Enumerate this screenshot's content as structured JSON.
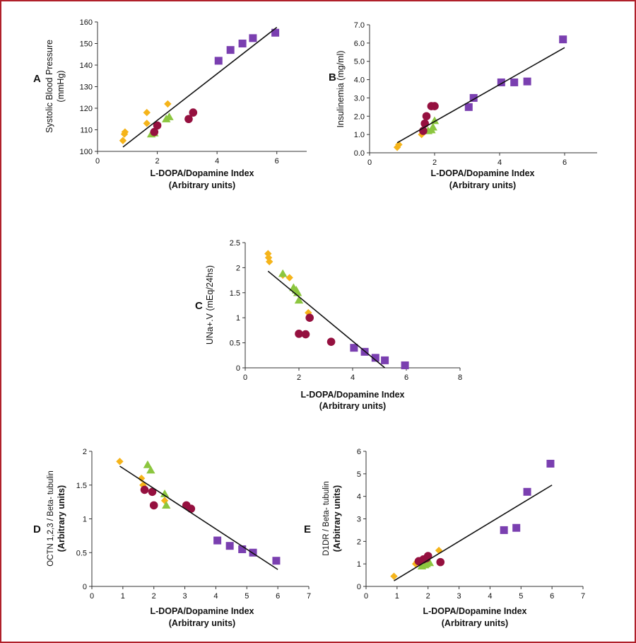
{
  "colors": {
    "frame": "#b0202a",
    "diamond": "#f5b41a",
    "triangle": "#8cc63f",
    "circle": "#95103f",
    "square": "#7a3fb0",
    "axis": "#333333",
    "fit": "#111111"
  },
  "chart_data": [
    {
      "id": "A",
      "type": "scatter",
      "panel_label": "A",
      "xlabel": [
        "L-DOPA/Dopamine Index",
        "(Arbitrary units)"
      ],
      "ylabel": [
        "Systolic Blood Pressure",
        "(mmHg)"
      ],
      "xlim": [
        0,
        7
      ],
      "ylim": [
        100,
        160
      ],
      "xticks": [
        "0",
        "2",
        "4",
        "6"
      ],
      "xtick_values": [
        0,
        2,
        4,
        6
      ],
      "yticks": [
        "100",
        "110",
        "120",
        "130",
        "140",
        "150",
        "160"
      ],
      "ytick_values": [
        100,
        110,
        120,
        130,
        140,
        150,
        160
      ],
      "fit_line": [
        [
          0.85,
          102
        ],
        [
          6.0,
          157.5
        ]
      ],
      "series": [
        {
          "name": "diamond",
          "marker": "diamond",
          "points": [
            [
              0.85,
              105
            ],
            [
              0.9,
              108
            ],
            [
              0.92,
              109
            ],
            [
              1.65,
              113
            ],
            [
              1.65,
              118
            ],
            [
              2.35,
              122
            ]
          ]
        },
        {
          "name": "triangle",
          "marker": "triangle",
          "points": [
            [
              1.8,
              108
            ],
            [
              1.9,
              108.5
            ],
            [
              2.3,
              115
            ],
            [
              2.4,
              116
            ]
          ]
        },
        {
          "name": "circle",
          "marker": "circle",
          "points": [
            [
              1.9,
              109
            ],
            [
              2.0,
              112
            ],
            [
              3.05,
              115
            ],
            [
              3.2,
              118
            ]
          ]
        },
        {
          "name": "square",
          "marker": "square",
          "points": [
            [
              4.05,
              142
            ],
            [
              4.45,
              147
            ],
            [
              4.85,
              150
            ],
            [
              5.2,
              152.5
            ],
            [
              5.95,
              155
            ]
          ]
        }
      ]
    },
    {
      "id": "B",
      "type": "scatter",
      "panel_label": "B",
      "xlabel": [
        "L-DOPA/Dopamine Index",
        "(Arbitrary units)"
      ],
      "ylabel": [
        "Insulinemia (mg/ml)"
      ],
      "xlim": [
        0,
        7
      ],
      "ylim": [
        0,
        7
      ],
      "xticks": [
        "0",
        "2",
        "4",
        "6"
      ],
      "xtick_values": [
        0,
        2,
        4,
        6
      ],
      "yticks": [
        "0.0",
        "1.0",
        "2.0",
        "3.0",
        "4.0",
        "5.0",
        "6.0",
        "7.0"
      ],
      "ytick_values": [
        0,
        1,
        2,
        3,
        4,
        5,
        6,
        7
      ],
      "fit_line": [
        [
          0.85,
          0.55
        ],
        [
          6.0,
          5.75
        ]
      ],
      "series": [
        {
          "name": "diamond",
          "marker": "diamond",
          "points": [
            [
              0.85,
              0.3
            ],
            [
              0.9,
              0.45
            ],
            [
              1.6,
              1.0
            ]
          ]
        },
        {
          "name": "triangle",
          "marker": "triangle",
          "points": [
            [
              1.8,
              1.2
            ],
            [
              1.9,
              1.25
            ],
            [
              1.95,
              1.4
            ],
            [
              2.0,
              1.75
            ]
          ]
        },
        {
          "name": "circle",
          "marker": "circle",
          "points": [
            [
              1.65,
              1.2
            ],
            [
              1.7,
              1.6
            ],
            [
              1.75,
              2.0
            ],
            [
              1.9,
              2.55
            ],
            [
              2.0,
              2.55
            ]
          ]
        },
        {
          "name": "square",
          "marker": "square",
          "points": [
            [
              3.05,
              2.5
            ],
            [
              3.2,
              3.0
            ],
            [
              4.05,
              3.85
            ],
            [
              4.45,
              3.85
            ],
            [
              4.85,
              3.9
            ],
            [
              5.95,
              6.2
            ]
          ]
        }
      ]
    },
    {
      "id": "C",
      "type": "scatter",
      "panel_label": "C",
      "xlabel": [
        "L-DOPA/Dopamine Index",
        "(Arbitrary units)"
      ],
      "ylabel": [
        "UNa+.V (mEq/24hs)"
      ],
      "xlim": [
        0,
        8
      ],
      "ylim": [
        0,
        2.5
      ],
      "xticks": [
        "0",
        "2",
        "4",
        "6",
        "8"
      ],
      "xtick_values": [
        0,
        2,
        4,
        6,
        8
      ],
      "yticks": [
        "0",
        "0.5",
        "1",
        "1.5",
        "2",
        "2.5"
      ],
      "ytick_values": [
        0,
        0.5,
        1,
        1.5,
        2,
        2.5
      ],
      "fit_line": [
        [
          0.85,
          1.93
        ],
        [
          5.2,
          0.0
        ]
      ],
      "series": [
        {
          "name": "diamond",
          "marker": "diamond",
          "points": [
            [
              0.85,
              2.28
            ],
            [
              0.87,
              2.2
            ],
            [
              0.9,
              2.12
            ],
            [
              1.4,
              1.85
            ],
            [
              1.65,
              1.8
            ],
            [
              2.35,
              1.1
            ]
          ]
        },
        {
          "name": "triangle",
          "marker": "triangle",
          "points": [
            [
              1.4,
              1.88
            ],
            [
              1.8,
              1.6
            ],
            [
              1.9,
              1.55
            ],
            [
              1.95,
              1.5
            ],
            [
              2.0,
              1.35
            ]
          ]
        },
        {
          "name": "circle",
          "marker": "circle",
          "points": [
            [
              2.0,
              0.68
            ],
            [
              2.25,
              0.67
            ],
            [
              2.4,
              1.0
            ],
            [
              3.2,
              0.52
            ]
          ]
        },
        {
          "name": "square",
          "marker": "square",
          "points": [
            [
              4.05,
              0.4
            ],
            [
              4.45,
              0.32
            ],
            [
              4.85,
              0.2
            ],
            [
              5.2,
              0.15
            ],
            [
              5.95,
              0.05
            ]
          ]
        }
      ]
    },
    {
      "id": "D",
      "type": "scatter",
      "panel_label": "D",
      "xlabel": [
        "L-DOPA/Dopamine Index",
        "(Arbitrary units)"
      ],
      "ylabel": [
        "OCTN 1,2,3 / Beta- tubulin",
        "(Arbitrary units)"
      ],
      "xlim": [
        0,
        7
      ],
      "ylim": [
        0,
        2
      ],
      "xticks": [
        "0",
        "1",
        "2",
        "3",
        "4",
        "5",
        "6",
        "7"
      ],
      "xtick_values": [
        0,
        1,
        2,
        3,
        4,
        5,
        6,
        7
      ],
      "yticks": [
        "0",
        "0.5",
        "1",
        "1.5",
        "2"
      ],
      "ytick_values": [
        0,
        0.5,
        1,
        1.5,
        2
      ],
      "fit_line": [
        [
          0.9,
          1.78
        ],
        [
          6.0,
          0.25
        ]
      ],
      "series": [
        {
          "name": "diamond",
          "marker": "diamond",
          "points": [
            [
              0.9,
              1.85
            ],
            [
              1.6,
              1.6
            ],
            [
              1.65,
              1.5
            ],
            [
              2.35,
              1.27
            ]
          ]
        },
        {
          "name": "triangle",
          "marker": "triangle",
          "points": [
            [
              1.8,
              1.8
            ],
            [
              1.9,
              1.72
            ],
            [
              2.35,
              1.37
            ],
            [
              2.4,
              1.2
            ]
          ]
        },
        {
          "name": "circle",
          "marker": "circle",
          "points": [
            [
              1.7,
              1.43
            ],
            [
              1.95,
              1.4
            ],
            [
              2.0,
              1.2
            ],
            [
              3.05,
              1.2
            ],
            [
              3.2,
              1.15
            ]
          ]
        },
        {
          "name": "square",
          "marker": "square",
          "points": [
            [
              4.05,
              0.68
            ],
            [
              4.45,
              0.6
            ],
            [
              4.85,
              0.55
            ],
            [
              5.2,
              0.5
            ],
            [
              5.95,
              0.38
            ]
          ]
        }
      ]
    },
    {
      "id": "E",
      "type": "scatter",
      "panel_label": "E",
      "xlabel": [
        "L-DOPA/Dopamine Index",
        "(Arbitrary units)"
      ],
      "ylabel": [
        "D1DR / Beta- tubulin",
        "(Arbitrary units)"
      ],
      "xlim": [
        0,
        7
      ],
      "ylim": [
        0,
        6
      ],
      "xticks": [
        "0",
        "1",
        "2",
        "3",
        "4",
        "5",
        "6",
        "7"
      ],
      "xtick_values": [
        0,
        1,
        2,
        3,
        4,
        5,
        6,
        7
      ],
      "yticks": [
        "0",
        "1",
        "2",
        "3",
        "4",
        "5",
        "6"
      ],
      "ytick_values": [
        0,
        1,
        2,
        3,
        4,
        5,
        6
      ],
      "fit_line": [
        [
          0.9,
          0.25
        ],
        [
          6.0,
          4.5
        ]
      ],
      "series": [
        {
          "name": "diamond",
          "marker": "diamond",
          "points": [
            [
              0.9,
              0.45
            ],
            [
              1.6,
              1.0
            ],
            [
              1.65,
              1.1
            ],
            [
              2.35,
              1.6
            ]
          ]
        },
        {
          "name": "triangle",
          "marker": "triangle",
          "points": [
            [
              1.8,
              0.9
            ],
            [
              1.9,
              0.95
            ],
            [
              1.95,
              1.0
            ],
            [
              2.05,
              1.05
            ]
          ]
        },
        {
          "name": "circle",
          "marker": "circle",
          "points": [
            [
              1.7,
              1.12
            ],
            [
              1.85,
              1.2
            ],
            [
              1.95,
              1.25
            ],
            [
              2.0,
              1.35
            ],
            [
              2.4,
              1.08
            ]
          ]
        },
        {
          "name": "square",
          "marker": "square",
          "points": [
            [
              4.45,
              2.5
            ],
            [
              4.85,
              2.6
            ],
            [
              5.2,
              4.2
            ],
            [
              5.95,
              5.45
            ]
          ]
        }
      ]
    }
  ]
}
